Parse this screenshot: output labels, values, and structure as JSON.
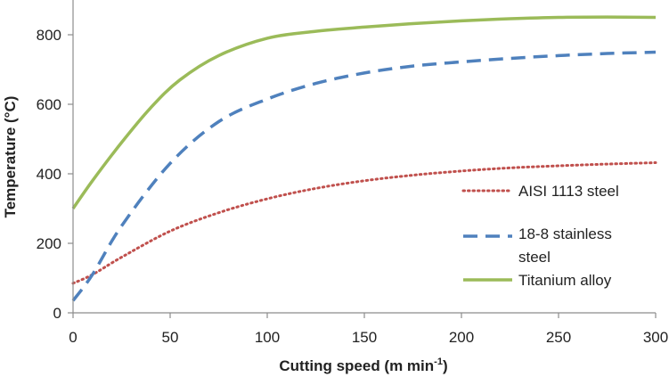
{
  "chart_data": {
    "type": "line",
    "xlabel": "Cutting speed (m min",
    "xlabel_sup": "-1",
    "xlabel_close": ")",
    "ylabel": "Temperature  (°C)",
    "xlim": [
      0,
      300
    ],
    "ylim": [
      0,
      850
    ],
    "x_ticks": [
      "0",
      "50",
      "100",
      "150",
      "200",
      "250",
      "300"
    ],
    "y_ticks": [
      "0",
      "200",
      "400",
      "600",
      "800"
    ],
    "grid": false,
    "legend_position": "right",
    "series": [
      {
        "name": "AISI 1113 steel",
        "color": "#C0504D",
        "style": "dotted",
        "x": [
          0,
          10,
          25,
          50,
          75,
          100,
          125,
          150,
          175,
          200,
          225,
          250,
          275,
          300
        ],
        "y": [
          85,
          110,
          160,
          235,
          288,
          328,
          358,
          380,
          396,
          408,
          417,
          423,
          428,
          432
        ]
      },
      {
        "name_line1": "18-8 stainless",
        "name_line2": "steel",
        "color": "#4F81BD",
        "style": "dashed",
        "x": [
          0,
          10,
          25,
          50,
          75,
          100,
          125,
          150,
          175,
          200,
          225,
          250,
          275,
          300
        ],
        "y": [
          35,
          110,
          250,
          430,
          550,
          615,
          660,
          690,
          710,
          722,
          732,
          740,
          746,
          750
        ]
      },
      {
        "name": "Titanium alloy",
        "color": "#9BBB59",
        "style": "solid",
        "x": [
          0,
          10,
          25,
          40,
          55,
          75,
          100,
          125,
          150,
          175,
          200,
          225,
          250,
          275,
          300
        ],
        "y": [
          300,
          380,
          490,
          590,
          670,
          740,
          790,
          810,
          822,
          832,
          840,
          846,
          850,
          851,
          850
        ]
      }
    ]
  }
}
